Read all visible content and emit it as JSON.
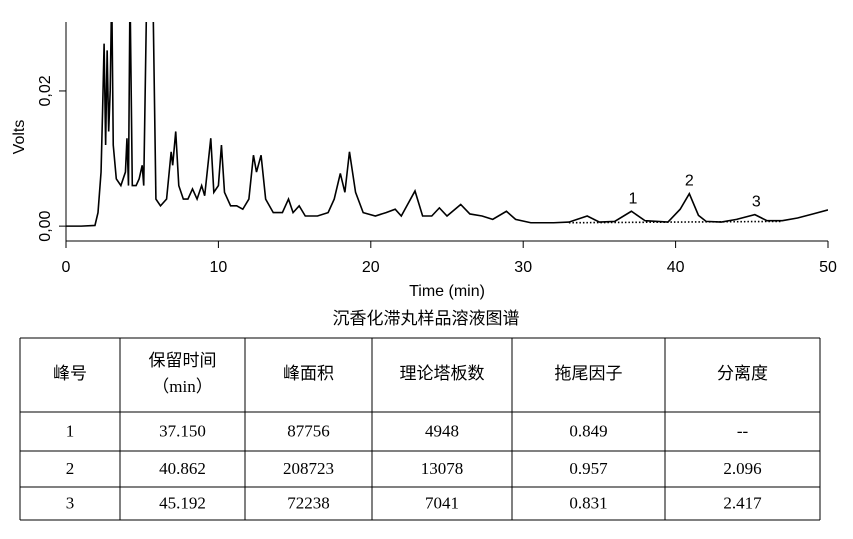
{
  "chart_data": {
    "type": "line",
    "xlabel": "Time (min)",
    "ylabel": "Volts",
    "xlim": [
      0,
      50
    ],
    "xticks": [
      0,
      10,
      20,
      30,
      40,
      50
    ],
    "ylim": [
      -0.0022,
      0.0302
    ],
    "yticks": [
      {
        "value": 0,
        "label": "0,00"
      },
      {
        "value": 0.02,
        "label": "0,02"
      }
    ],
    "series": [
      {
        "color": "#000000",
        "x": [
          0,
          1,
          1.9,
          2.1,
          2.3,
          2.4,
          2.5,
          2.6,
          2.7,
          2.8,
          2.9,
          3.0,
          3.1,
          3.3,
          3.6,
          3.9,
          4.0,
          4.1,
          4.2,
          4.35,
          4.6,
          4.8,
          5.0,
          5.1,
          5.3,
          5.7,
          5.9,
          6.2,
          6.6,
          6.9,
          7.0,
          7.2,
          7.4,
          7.7,
          8.0,
          8.3,
          8.6,
          8.9,
          9.1,
          9.5,
          9.7,
          10.0,
          10.2,
          10.4,
          10.8,
          11.2,
          11.6,
          12.0,
          12.3,
          12.5,
          12.8,
          13.1,
          13.6,
          14.2,
          14.6,
          14.9,
          15.3,
          15.7,
          16.5,
          17.2,
          17.6,
          18.0,
          18.3,
          18.6,
          19.0,
          19.5,
          20.3,
          21.0,
          21.6,
          22.0,
          22.9,
          23.4,
          24.0,
          24.5,
          25.0,
          25.9,
          26.5,
          27.3,
          28.0,
          28.9,
          29.5,
          30.5,
          32,
          33,
          34.2,
          35,
          36,
          37.1,
          38,
          39.5,
          40.3,
          40.9,
          41.5,
          42,
          43,
          44,
          45.2,
          46,
          47,
          48,
          49,
          50
        ],
        "values": [
          0,
          0,
          0.0001,
          0.002,
          0.008,
          0.017,
          0.027,
          0.012,
          0.026,
          0.014,
          0.02,
          0.035,
          0.012,
          0.007,
          0.006,
          0.008,
          0.013,
          0.006,
          0.035,
          0.006,
          0.006,
          0.007,
          0.009,
          0.006,
          0.035,
          0.035,
          0.004,
          0.003,
          0.004,
          0.011,
          0.009,
          0.014,
          0.006,
          0.004,
          0.004,
          0.0055,
          0.004,
          0.006,
          0.0045,
          0.013,
          0.005,
          0.006,
          0.012,
          0.005,
          0.003,
          0.003,
          0.0025,
          0.004,
          0.0105,
          0.008,
          0.0105,
          0.004,
          0.002,
          0.002,
          0.004,
          0.002,
          0.003,
          0.0015,
          0.0015,
          0.002,
          0.004,
          0.0078,
          0.005,
          0.011,
          0.005,
          0.002,
          0.0015,
          0.002,
          0.0025,
          0.0015,
          0.0052,
          0.0015,
          0.0015,
          0.0027,
          0.0015,
          0.0032,
          0.0018,
          0.0015,
          0.001,
          0.0022,
          0.001,
          0.0005,
          0.0005,
          0.0006,
          0.0015,
          0.0006,
          0.0007,
          0.0022,
          0.0008,
          0.0006,
          0.0025,
          0.0048,
          0.0016,
          0.0007,
          0.0006,
          0.001,
          0.0017,
          0.0008,
          0.0008,
          0.0012,
          0.0018,
          0.0024
        ]
      },
      {
        "color": "#000000",
        "style": "dotted",
        "x": [
          33,
          47
        ],
        "values": [
          0.0005,
          0.0007
        ]
      }
    ],
    "annotations": [
      {
        "text": "1",
        "x": 37.2,
        "y": 0.004
      },
      {
        "text": "2",
        "x": 40.9,
        "y": 0.0066
      },
      {
        "text": "3",
        "x": 45.3,
        "y": 0.0035
      }
    ]
  },
  "caption": "沉香化滞丸样品溶液图谱",
  "table": {
    "header": [
      [
        "峰号"
      ],
      [
        "保留时间",
        "（min）"
      ],
      [
        "峰面积"
      ],
      [
        "理论塔板数"
      ],
      [
        "拖尾因子"
      ],
      [
        "分离度"
      ]
    ],
    "rows": [
      [
        "1",
        "37.150",
        "87756",
        "4948",
        "0.849",
        "--"
      ],
      [
        "2",
        "40.862",
        "208723",
        "13078",
        "0.957",
        "2.096"
      ],
      [
        "3",
        "45.192",
        "72238",
        "7041",
        "0.831",
        "2.417"
      ]
    ]
  }
}
